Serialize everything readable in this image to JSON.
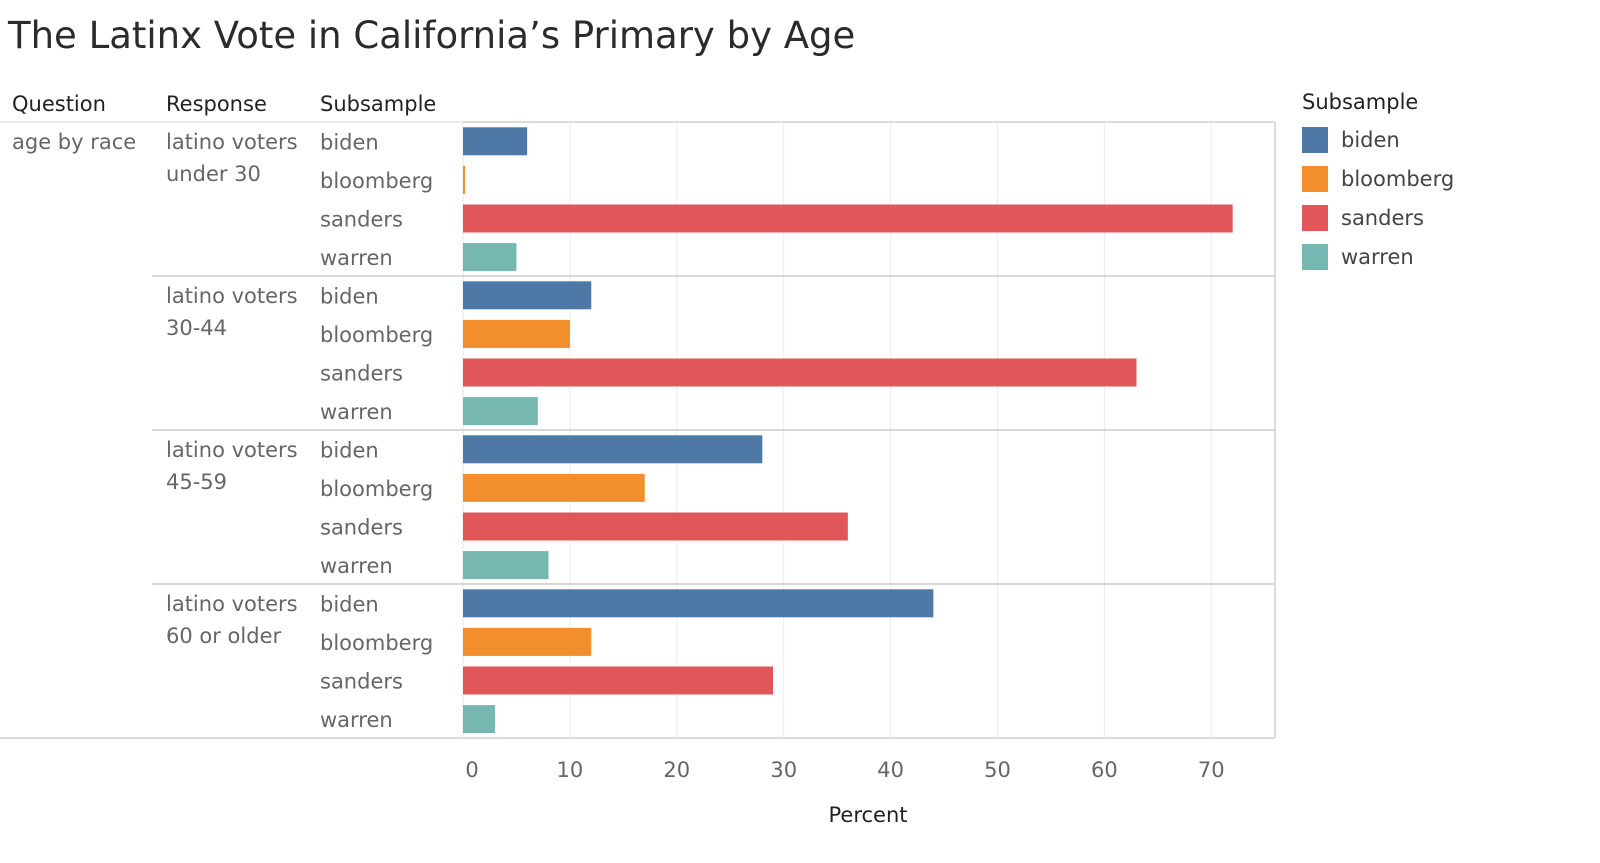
{
  "title": "The Latinx Vote in California’s Primary by Age",
  "headers": {
    "question": "Question",
    "response": "Response",
    "subsample": "Subsample"
  },
  "legend": {
    "title": "Subsample",
    "items": [
      {
        "label": "biden",
        "color": "#4e79a7"
      },
      {
        "label": "bloomberg",
        "color": "#f28e2b"
      },
      {
        "label": "sanders",
        "color": "#e15759"
      },
      {
        "label": "warren",
        "color": "#76b7b2"
      }
    ]
  },
  "chart_data": {
    "type": "bar",
    "orientation": "horizontal",
    "question": "age by race",
    "groups": [
      {
        "label_lines": [
          "latino voters",
          "under 30"
        ],
        "values": [
          6,
          0.2,
          72,
          5
        ]
      },
      {
        "label_lines": [
          "latino voters",
          "30-44"
        ],
        "values": [
          12,
          10,
          63,
          7
        ]
      },
      {
        "label_lines": [
          "latino voters",
          "45-59"
        ],
        "values": [
          28,
          17,
          36,
          8
        ]
      },
      {
        "label_lines": [
          "latino voters",
          "60 or older"
        ],
        "values": [
          44,
          12,
          29,
          3
        ]
      }
    ],
    "categories": [
      "biden",
      "bloomberg",
      "sanders",
      "warren"
    ],
    "colors": [
      "#4e79a7",
      "#f28e2b",
      "#e15759",
      "#76b7b2"
    ],
    "xlabel": "Percent",
    "xlim": [
      0,
      76
    ],
    "xticks": [
      0,
      10,
      20,
      30,
      40,
      50,
      60,
      70
    ],
    "grid": true,
    "legend_position": "right"
  }
}
